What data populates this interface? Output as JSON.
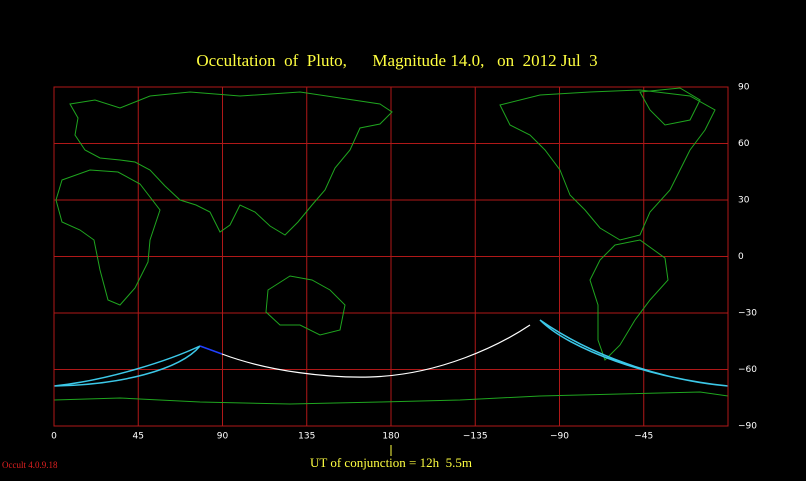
{
  "header": {
    "title": "Occultation  of  Pluto,      Magnitude 14.0,   on  2012 Jul  3"
  },
  "x_axis": {
    "ticks": [
      "0",
      "45",
      "90",
      "135",
      "180",
      "−135",
      "−90",
      "−45"
    ]
  },
  "y_axis": {
    "ticks": [
      "90",
      "60",
      "30",
      "0",
      "−30",
      "−60",
      "−90"
    ]
  },
  "footer": {
    "conjunction": "UT of conjunction = 12h  5.5m",
    "version": "Occult 4.0.9.18"
  }
}
